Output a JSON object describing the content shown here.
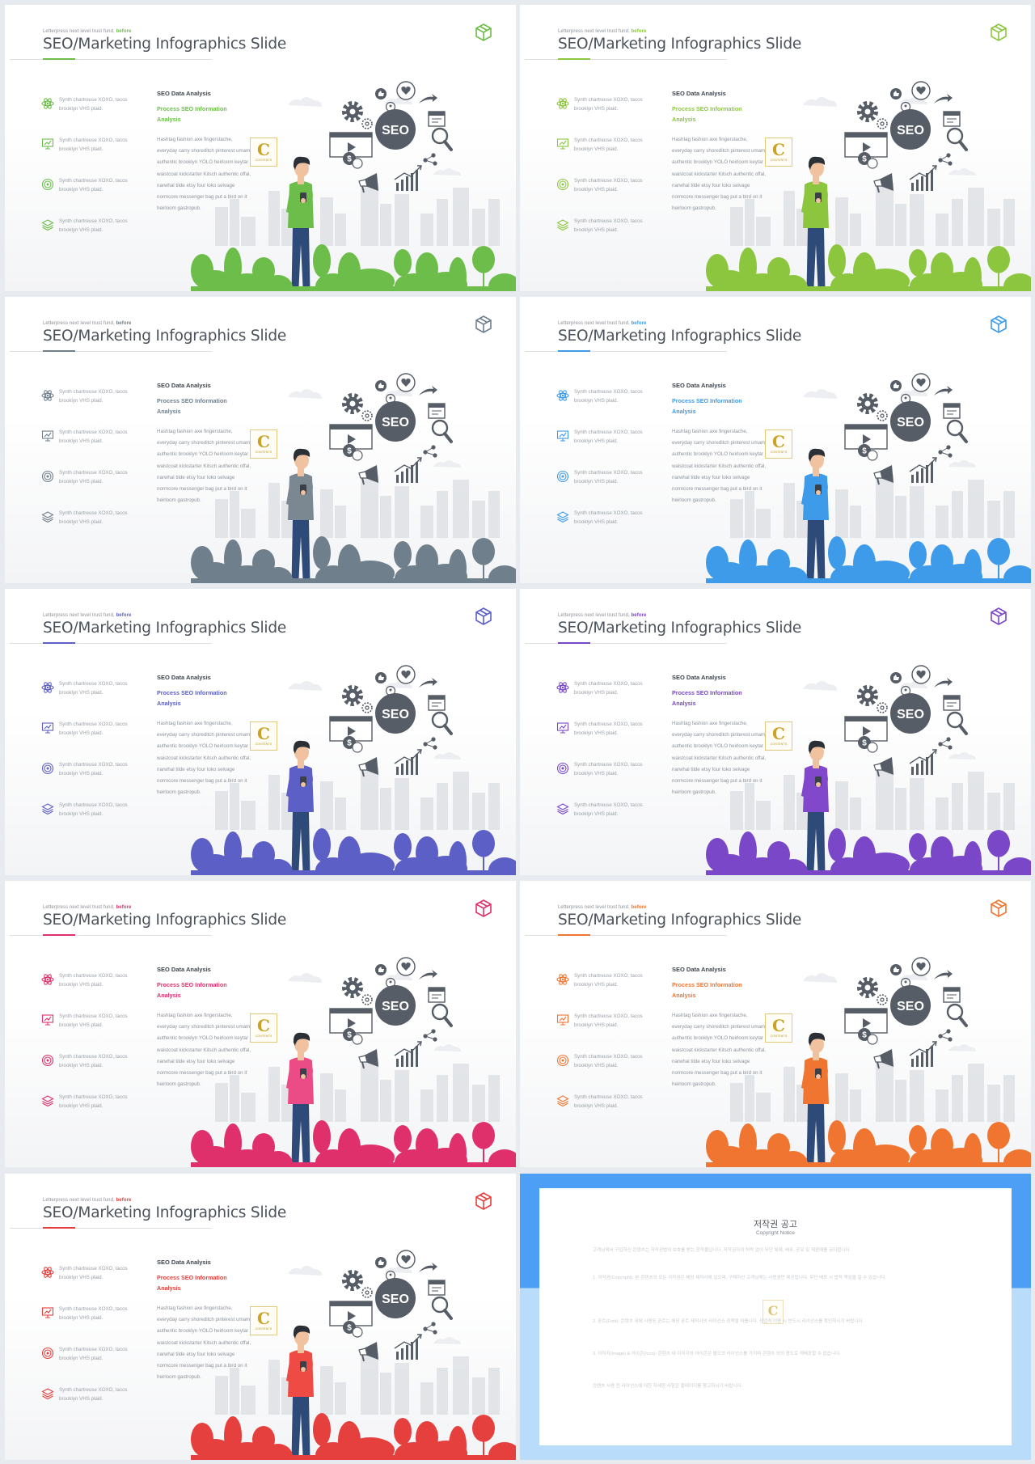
{
  "slides": [
    {
      "accent": "#6cbd4a",
      "shirt": "#6cbd4a",
      "eyebrow_text": "Letterpress next level trust fund,",
      "eyebrow_accent": "before",
      "title": "SEO/Marketing Infographics Slide"
    },
    {
      "accent": "#8cc63f",
      "shirt": "#8cc63f",
      "eyebrow_text": "Letterpress next level trust fund,",
      "eyebrow_accent": "before",
      "title": "SEO/Marketing Infographics Slide"
    },
    {
      "accent": "#6f7f8c",
      "shirt": "#7b8791",
      "eyebrow_text": "Letterpress next level trust fund,",
      "eyebrow_accent": "before",
      "title": "SEO/Marketing Infographics Slide"
    },
    {
      "accent": "#3e9bea",
      "shirt": "#3e9bea",
      "eyebrow_text": "Letterpress next level trust fund,",
      "eyebrow_accent": "before",
      "title": "SEO/Marketing Infographics Slide"
    },
    {
      "accent": "#5c5fc5",
      "shirt": "#5c5fc5",
      "eyebrow_text": "Letterpress next level trust fund,",
      "eyebrow_accent": "before",
      "title": "SEO/Marketing Infographics Slide"
    },
    {
      "accent": "#7a47c8",
      "shirt": "#8248cc",
      "eyebrow_text": "Letterpress next level trust fund,",
      "eyebrow_accent": "before",
      "title": "SEO/Marketing Infographics Slide"
    },
    {
      "accent": "#e0306b",
      "shirt": "#ec4c86",
      "eyebrow_text": "Letterpress next level trust fund,",
      "eyebrow_accent": "before",
      "title": "SEO/Marketing Infographics Slide"
    },
    {
      "accent": "#f07531",
      "shirt": "#f07531",
      "eyebrow_text": "Letterpress next level trust fund,",
      "eyebrow_accent": "before",
      "title": "SEO/Marketing Infographics Slide"
    },
    {
      "accent": "#e5403d",
      "shirt": "#ee4b45",
      "eyebrow_text": "Letterpress next level trust fund,",
      "eyebrow_accent": "before",
      "title": "SEO/Marketing Infographics Slide"
    }
  ],
  "common": {
    "features": [
      {
        "icon": "atom-icon",
        "text": "Synth chartreuse XOXO, tacos brooklyn VHS plaid."
      },
      {
        "icon": "presentation-icon",
        "text": "Synth chartreuse XOXO, tacos brooklyn VHS plaid."
      },
      {
        "icon": "target-icon",
        "text": "Synth chartreuse XOXO, tacos brooklyn VHS plaid."
      },
      {
        "icon": "layers-icon",
        "text": "Synth chartreuse XOXO, tacos brooklyn VHS plaid."
      }
    ],
    "col_heading": "SEO Data Analysis",
    "col_subheading": "Process SEO Information Analysis",
    "col_body": "Hashtag fashion axe fingerstache, everyday carry shoreditch pinterest umami authentic brooklyn YOLO heirloom keytar waistcoat kickstarter Kitsch authentic offal, narwhal tilde etsy four loko selvage normcore messenger bag put a bird on it heirloom gastropub.",
    "logo_letter": "C",
    "logo_caption": "CONTENTS",
    "seo_label": "SEO",
    "dark_gray": "#565d66",
    "mid_gray": "#d8dbe0",
    "light_gray": "#eceef1"
  },
  "copyright": {
    "title": "저작권 공고",
    "subtitle": "Copyright Notice",
    "logo_letter": "C",
    "paragraphs": [
      "고객님께서 구입하신 콘텐츠는 저작권법의 보호를 받는 창작물입니다. 저작권자의 허락 없이 무단 복제, 배포, 공유 및 재판매를 금지합니다.",
      "1. 저작권(Copyright): 본 콘텐츠의 모든 저작권은 해당 제작사에 있으며, 구매하신 고객님께는 사용권만 제공됩니다. 무단 배포 시 법적 책임을 질 수 있습니다.",
      "2. 폰트(Font): 콘텐츠 내에 사용된 폰트는 해당 폰트 제작사의 라이선스 정책을 따릅니다. 상업적 이용 시 반드시 라이선스를 확인하시기 바랍니다.",
      "3. 이미지(Image) & 아이콘(Icon): 콘텐츠 내 이미지와 아이콘은 별도의 라이선스를 가지며 콘텐츠 외의 용도로 재배포할 수 없습니다.",
      "콘텐츠 사용 전 라이선스에 대한 자세한 사항은 홈페이지를 참고하시기 바랍니다."
    ]
  }
}
